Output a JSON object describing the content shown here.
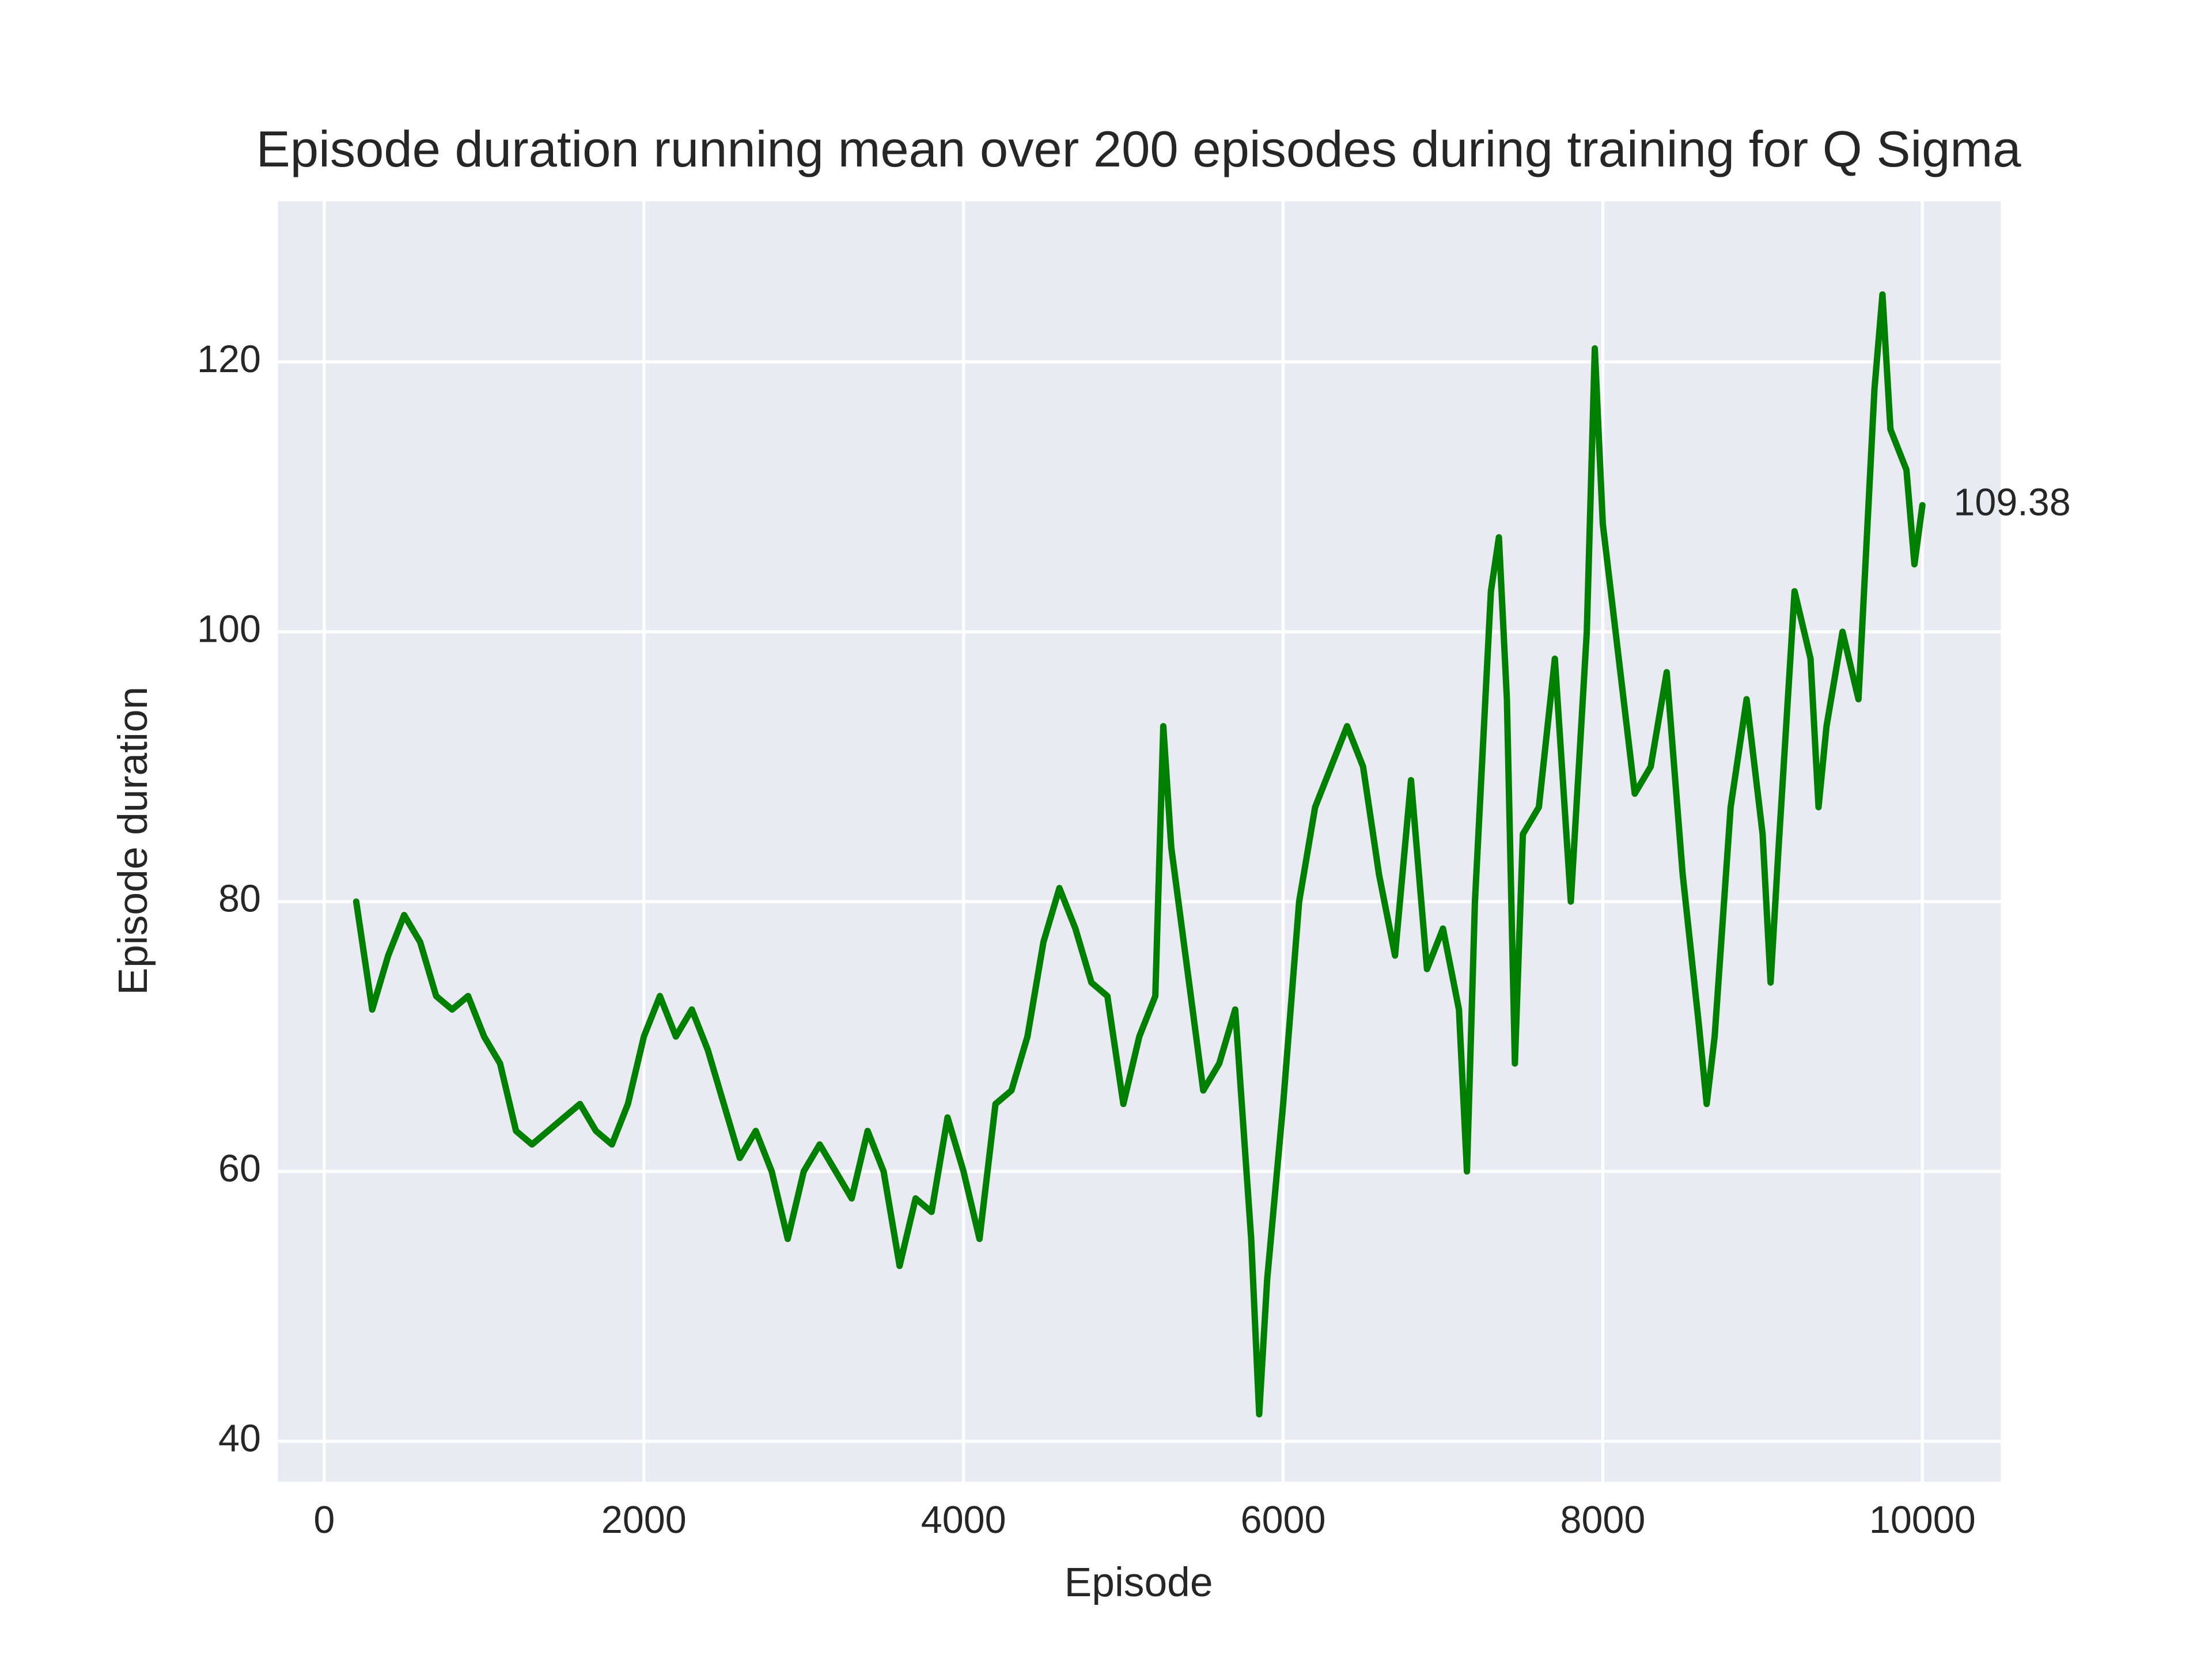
{
  "chart_data": {
    "type": "line",
    "title": "Episode duration running mean over 200 episodes during training for Q Sigma",
    "x_label": "Episode",
    "y_label": "Episode duration",
    "x": [
      200,
      300,
      400,
      500,
      600,
      700,
      800,
      900,
      1000,
      1100,
      1200,
      1300,
      1400,
      1500,
      1600,
      1700,
      1800,
      1900,
      2000,
      2100,
      2200,
      2300,
      2400,
      2500,
      2600,
      2700,
      2800,
      2900,
      3000,
      3100,
      3200,
      3300,
      3400,
      3500,
      3600,
      3700,
      3800,
      3900,
      4000,
      4100,
      4200,
      4300,
      4400,
      4500,
      4600,
      4700,
      4800,
      4900,
      5000,
      5100,
      5200,
      5250,
      5300,
      5400,
      5500,
      5600,
      5700,
      5800,
      5850,
      5900,
      6000,
      6100,
      6200,
      6300,
      6400,
      6500,
      6600,
      6700,
      6800,
      6900,
      7000,
      7100,
      7150,
      7200,
      7300,
      7350,
      7400,
      7450,
      7500,
      7600,
      7700,
      7800,
      7900,
      7950,
      8000,
      8100,
      8200,
      8300,
      8400,
      8500,
      8600,
      8650,
      8700,
      8800,
      8900,
      9000,
      9050,
      9100,
      9200,
      9300,
      9350,
      9400,
      9500,
      9600,
      9700,
      9750,
      9800,
      9900,
      9950,
      10000
    ],
    "series": [
      {
        "name": "Q Sigma",
        "color": "#008000",
        "values": [
          80,
          72,
          76,
          79,
          77,
          73,
          72,
          73,
          70,
          68,
          63,
          62,
          63,
          64,
          65,
          63,
          62,
          65,
          70,
          73,
          70,
          72,
          69,
          65,
          61,
          63,
          60,
          55,
          60,
          62,
          60,
          58,
          63,
          60,
          53,
          58,
          57,
          64,
          60,
          55,
          65,
          66,
          70,
          77,
          81,
          78,
          74,
          73,
          65,
          70,
          73,
          93,
          84,
          75,
          66,
          68,
          72,
          55,
          42,
          52,
          65,
          80,
          87,
          90,
          93,
          90,
          82,
          76,
          89,
          75,
          78,
          72,
          60,
          80,
          103,
          107,
          95,
          68,
          85,
          87,
          98,
          80,
          100,
          121,
          108,
          98,
          88,
          90,
          97,
          82,
          71,
          65,
          70,
          87,
          95,
          85,
          74,
          84,
          103,
          98,
          87,
          93,
          100,
          95,
          118,
          125,
          115,
          112,
          105,
          109.38
        ]
      }
    ],
    "xlim": [
      -290,
      10490
    ],
    "ylim": [
      37.0,
      131.9
    ],
    "xticks": [
      0,
      2000,
      4000,
      6000,
      8000,
      10000
    ],
    "yticks": [
      40,
      60,
      80,
      100,
      120
    ],
    "grid": true,
    "background": "#eaeaf2"
  }
}
